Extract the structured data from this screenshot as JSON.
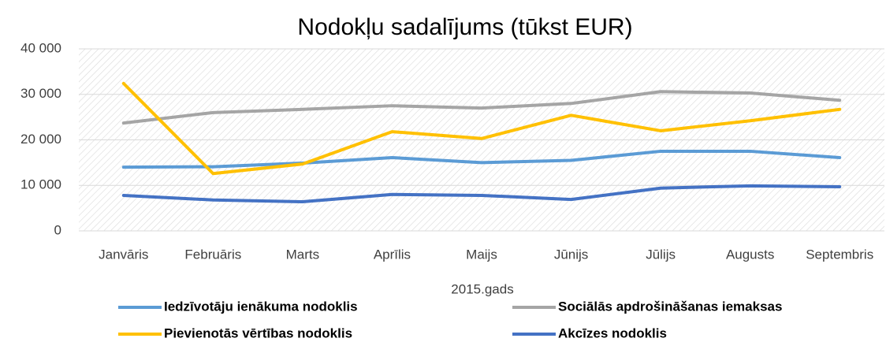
{
  "chart_data": {
    "type": "line",
    "title": "Nodokļu sadalījums (tūkst EUR)",
    "x_label": "2015.gads",
    "categories": [
      "Janvāris",
      "Februāris",
      "Marts",
      "Aprīlis",
      "Maijs",
      "Jūnijs",
      "Jūlijs",
      "Augusts",
      "Septembris"
    ],
    "series": [
      {
        "name": "Iedzīvotāju ienākuma nodoklis",
        "color": "#5b9bd5",
        "values": [
          14000,
          14100,
          14900,
          16100,
          15000,
          15500,
          17500,
          17500,
          16100
        ]
      },
      {
        "name": "Sociālās apdrošināšanas iemaksas",
        "color": "#a5a5a5",
        "values": [
          23700,
          26000,
          26700,
          27500,
          27000,
          28000,
          30600,
          30300,
          28700
        ]
      },
      {
        "name": "Pievienotās vērtības nodoklis",
        "color": "#ffc000",
        "values": [
          32400,
          12600,
          14700,
          21800,
          20300,
          25400,
          22000,
          24200,
          26700
        ]
      },
      {
        "name": "Akcīzes nodoklis",
        "color": "#4472c4",
        "values": [
          7800,
          6800,
          6400,
          8000,
          7800,
          6900,
          9400,
          9900,
          9700
        ]
      }
    ],
    "ylim": [
      0,
      40000
    ],
    "yticks": [
      0,
      {
        "value": 10000,
        "label": "10 000"
      },
      {
        "value": 20000,
        "label": "20 000"
      },
      {
        "value": 30000,
        "label": "30 000"
      },
      {
        "value": 40000,
        "label": "40 000"
      }
    ],
    "grid": true
  }
}
